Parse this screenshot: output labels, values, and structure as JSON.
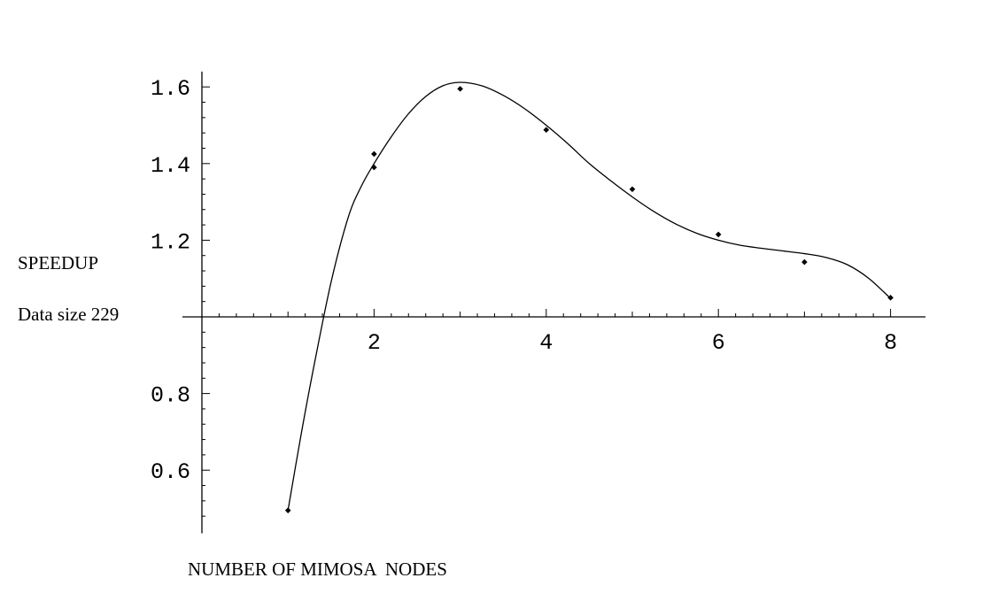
{
  "chart_data": {
    "type": "scatter",
    "title": "",
    "ylabel": "SPEEDUP",
    "ylabel_note": "Data size 229",
    "xlabel": "NUMBER OF MIMOSA  NODES",
    "xlim": [
      0,
      8.2
    ],
    "ylim": [
      0.47,
      1.64
    ],
    "axis_origin": {
      "x": 0,
      "y": 1.0
    },
    "x_ticks": [
      2,
      4,
      6,
      8
    ],
    "y_ticks": [
      0.6,
      0.8,
      1.2,
      1.4,
      1.6
    ],
    "grid": false,
    "legend": "none",
    "series": [
      {
        "points": [
          {
            "x": 1,
            "y": 0.495
          },
          {
            "x": 2,
            "y": 1.425
          },
          {
            "x": 2,
            "y": 1.39
          },
          {
            "x": 3,
            "y": 1.595
          },
          {
            "x": 4,
            "y": 1.488
          },
          {
            "x": 5,
            "y": 1.333
          },
          {
            "x": 6,
            "y": 1.215
          },
          {
            "x": 7,
            "y": 1.143
          },
          {
            "x": 8,
            "y": 1.05
          }
        ]
      }
    ],
    "fit_curve": [
      {
        "x": 1.0,
        "y": 0.495
      },
      {
        "x": 1.15,
        "y": 0.69
      },
      {
        "x": 1.3,
        "y": 0.87
      },
      {
        "x": 1.5,
        "y": 1.09
      },
      {
        "x": 1.7,
        "y": 1.26
      },
      {
        "x": 1.85,
        "y": 1.34
      },
      {
        "x": 2.0,
        "y": 1.4
      },
      {
        "x": 2.2,
        "y": 1.47
      },
      {
        "x": 2.4,
        "y": 1.53
      },
      {
        "x": 2.6,
        "y": 1.575
      },
      {
        "x": 2.8,
        "y": 1.603
      },
      {
        "x": 3.0,
        "y": 1.612
      },
      {
        "x": 3.25,
        "y": 1.603
      },
      {
        "x": 3.5,
        "y": 1.578
      },
      {
        "x": 3.75,
        "y": 1.543
      },
      {
        "x": 4.0,
        "y": 1.5
      },
      {
        "x": 4.25,
        "y": 1.452
      },
      {
        "x": 4.5,
        "y": 1.4
      },
      {
        "x": 4.75,
        "y": 1.355
      },
      {
        "x": 5.0,
        "y": 1.313
      },
      {
        "x": 5.25,
        "y": 1.275
      },
      {
        "x": 5.5,
        "y": 1.243
      },
      {
        "x": 5.75,
        "y": 1.218
      },
      {
        "x": 6.0,
        "y": 1.2
      },
      {
        "x": 6.25,
        "y": 1.187
      },
      {
        "x": 6.5,
        "y": 1.179
      },
      {
        "x": 6.75,
        "y": 1.172
      },
      {
        "x": 7.0,
        "y": 1.165
      },
      {
        "x": 7.25,
        "y": 1.155
      },
      {
        "x": 7.5,
        "y": 1.136
      },
      {
        "x": 7.75,
        "y": 1.1
      },
      {
        "x": 8.0,
        "y": 1.048
      }
    ],
    "colors": {
      "marks": "#000000",
      "background": "#ffffff"
    }
  }
}
